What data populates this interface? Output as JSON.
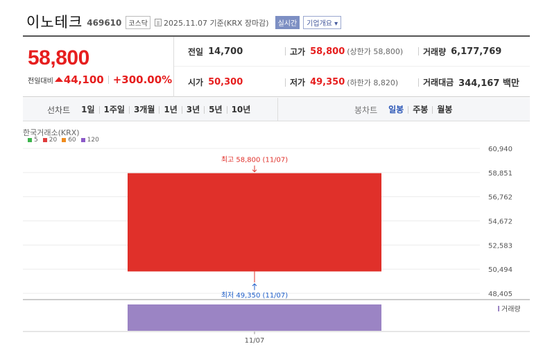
{
  "stock": {
    "name": "이노테크",
    "code": "469610",
    "market": "코스닥",
    "date_info": "2025.11.07 기준(KRX 장마감)",
    "realtime_label": "실시간",
    "company_label": "기업개요 ▾"
  },
  "price": {
    "current": "58,800",
    "diff_label": "전일대비",
    "diff": "44,100",
    "rate": "+300.00%"
  },
  "info": {
    "prev_label": "전일",
    "prev": "14,700",
    "high_label": "고가",
    "high": "58,800",
    "high_sub": "(상한가 58,800)",
    "volume_label": "거래량",
    "volume": "6,177,769",
    "open_label": "시가",
    "open": "50,300",
    "low_label": "저가",
    "low": "49,350",
    "low_sub": "(하한가 8,820)",
    "amount_label": "거래대금",
    "amount": "344,167 백만"
  },
  "period": {
    "line_title": "선차트",
    "line_items": [
      "1일",
      "1주일",
      "3개월",
      "1년",
      "3년",
      "5년",
      "10년"
    ],
    "candle_title": "봉차트",
    "candle_items": [
      "일봉",
      "주봉",
      "월봉"
    ],
    "active_candle": "일봉"
  },
  "chart_meta": {
    "source": "한국거래소(KRX)",
    "ma": [
      {
        "label": "5",
        "color": "#3cb44b"
      },
      {
        "label": "20",
        "color": "#e03c3c"
      },
      {
        "label": "60",
        "color": "#f08c1e"
      },
      {
        "label": "120",
        "color": "#8c5ac8"
      }
    ],
    "volume_legend": "거래량",
    "high_annotation": "최고 58,800 (11/07)",
    "low_annotation": "최저 49,350 (11/07)",
    "up_color": "#e0302a",
    "volume_color": "#9b84c4"
  },
  "chart_data": {
    "type": "candlestick",
    "x": [
      "11/07"
    ],
    "open": [
      50300
    ],
    "high": [
      58800
    ],
    "low": [
      49350
    ],
    "close": [
      58800
    ],
    "volume": [
      6177769
    ],
    "y_ticks": [
      "60,940",
      "58,851",
      "56,762",
      "54,672",
      "52,583",
      "50,494",
      "48,405"
    ],
    "ylim": [
      48405,
      60940
    ]
  }
}
